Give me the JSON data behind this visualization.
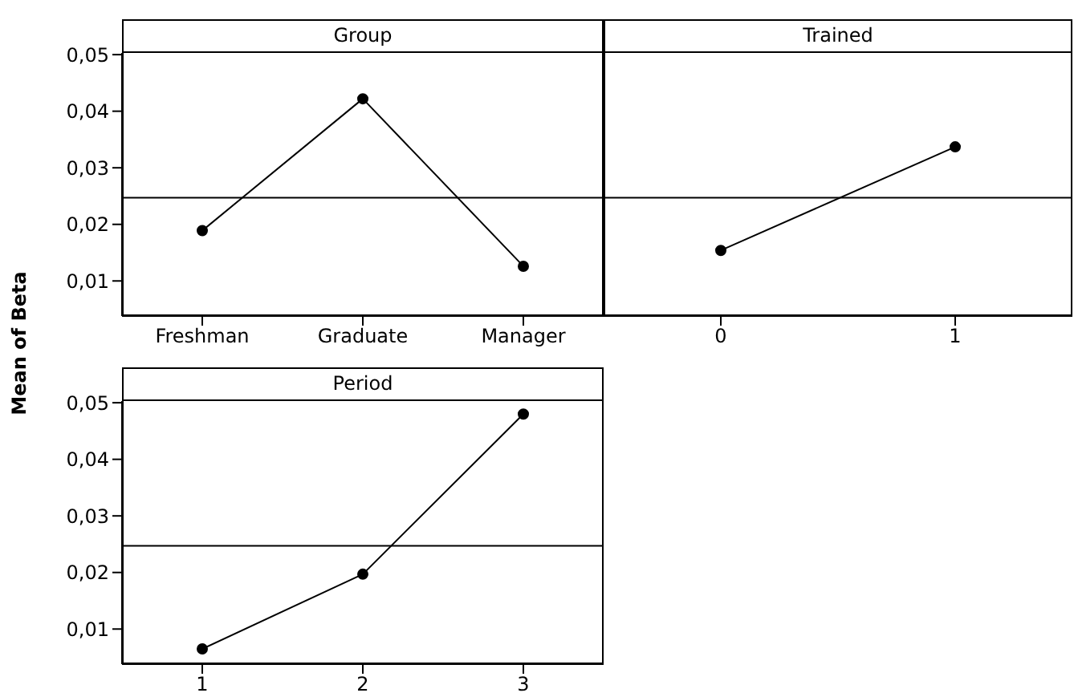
{
  "chart_data": [
    {
      "type": "line",
      "title": "Group",
      "ylabel": "Mean of Beta",
      "categories": [
        "Freshman",
        "Graduate",
        "Manager"
      ],
      "series": [
        {
          "color": "#000000",
          "values": [
            0.0189,
            0.0422,
            0.0126
          ]
        }
      ],
      "ylim": [
        0.0038,
        0.0503
      ],
      "yticks": [
        {
          "value": 0.01,
          "label": "0,01"
        },
        {
          "value": 0.02,
          "label": "0,02"
        },
        {
          "value": 0.03,
          "label": "0,03"
        },
        {
          "value": 0.04,
          "label": "0,04"
        },
        {
          "value": 0.05,
          "label": "0,05"
        }
      ],
      "ref_lines": [
        {
          "axis": "y",
          "value": 0.0247,
          "color": "#000000"
        }
      ],
      "marker": "circle",
      "grid": false,
      "legend": false
    },
    {
      "type": "line",
      "title": "Trained",
      "x": [
        0,
        1
      ],
      "xlim": [
        -0.5,
        1.5
      ],
      "xticks": [
        0,
        1
      ],
      "series": [
        {
          "color": "#000000",
          "values": [
            0.0154,
            0.0337
          ]
        }
      ],
      "ylim": [
        0.0038,
        0.0503
      ],
      "tick_labels": "x",
      "ref_lines": [
        {
          "axis": "y",
          "value": 0.0247,
          "color": "#000000"
        }
      ],
      "marker": "circle",
      "grid": false,
      "legend": false
    },
    {
      "type": "line",
      "title": "Period",
      "categories": [
        "1",
        "2",
        "3"
      ],
      "series": [
        {
          "color": "#000000",
          "values": [
            0.0065,
            0.0197,
            0.048
          ]
        }
      ],
      "ylim": [
        0.0038,
        0.0503
      ],
      "yticks": [
        {
          "value": 0.01,
          "label": "0,01"
        },
        {
          "value": 0.02,
          "label": "0,02"
        },
        {
          "value": 0.03,
          "label": "0,03"
        },
        {
          "value": 0.04,
          "label": "0,04"
        },
        {
          "value": 0.05,
          "label": "0,05"
        }
      ],
      "ref_lines": [
        {
          "axis": "y",
          "value": 0.0247,
          "color": "#000000"
        }
      ],
      "marker": "circle",
      "grid": false,
      "legend": false
    }
  ]
}
